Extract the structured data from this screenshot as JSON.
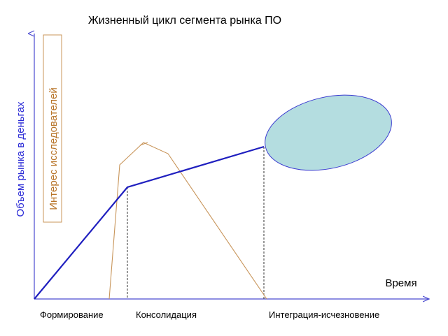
{
  "title": "Жизненный цикл сегмента рынка ПО",
  "y_axis_label": "Объем рынка в деньгах",
  "x_axis_label": "Время",
  "researcher_interest_label": "Интерес исследователей",
  "phases": [
    "Формирование",
    "Консолидация",
    "Интеграция-исчезновение"
  ],
  "colors": {
    "market_line": "#1f1fbf",
    "interest_line": "#c8955a",
    "interest_label": "#b8752a",
    "y_label": "#2a2ad6",
    "axis": "#4a4ad0",
    "ellipse_fill": "#b4dde0",
    "ellipse_stroke": "#3a3ad0"
  }
}
